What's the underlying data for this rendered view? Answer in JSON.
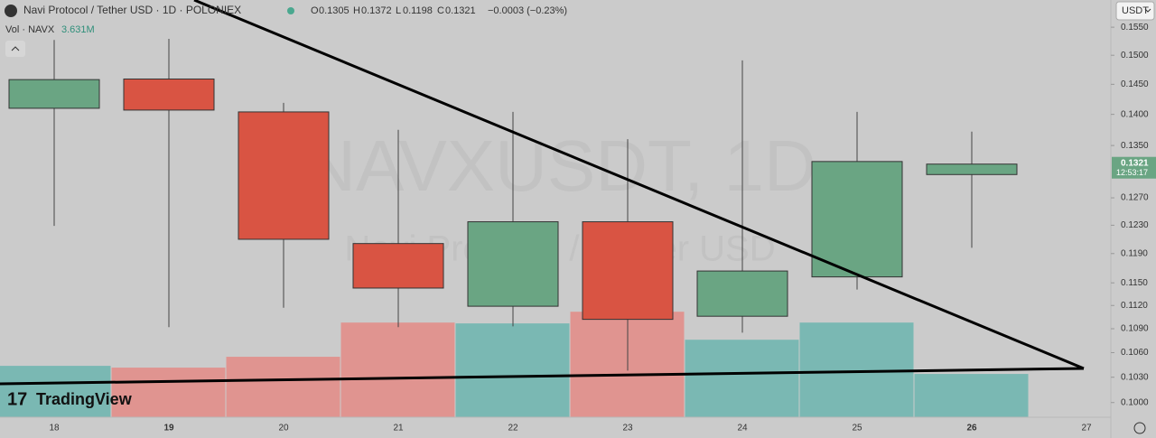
{
  "header": {
    "symbol": "Navi Protocol / Tether USD · 1D · POLONIEX",
    "open_key": "O",
    "high_key": "H",
    "low_key": "L",
    "close_key": "C",
    "change": "−0.0003 (−0.23%)",
    "volume_title": "Vol · NAVX",
    "currency": "USDT",
    "countdown": "12:53:17",
    "watermark_symbol": "NAVXUSDT, 1D",
    "watermark_name": "Navi Protocol / Tether USD",
    "brand": "TradingView"
  },
  "chart_data": {
    "type": "candlestick",
    "categories": [
      "18",
      "19",
      "20",
      "21",
      "22",
      "23",
      "24",
      "25",
      "26",
      "27"
    ],
    "open": [
      0.141,
      0.1459,
      0.1404,
      0.1204,
      0.1119,
      0.1235,
      0.1106,
      0.1158,
      0.1305,
      null
    ],
    "high": [
      0.1527,
      0.1529,
      0.1419,
      0.1375,
      0.1404,
      0.136,
      0.1491,
      0.1404,
      0.1372,
      null
    ],
    "low": [
      0.1229,
      0.1092,
      0.1117,
      0.1092,
      0.1093,
      0.1038,
      0.1085,
      0.1141,
      0.1198,
      null
    ],
    "close": [
      0.1458,
      0.1407,
      0.121,
      0.1143,
      0.1235,
      0.1102,
      0.1166,
      0.1325,
      0.1321,
      null
    ],
    "up_color": "#6aa583",
    "down_color": "#d95443",
    "ylim": [
      0.0983,
      0.16
    ],
    "log_scale": true,
    "yticks": [
      {
        "value": 0.155,
        "label": "0.1550"
      },
      {
        "value": 0.15,
        "label": "0.1500"
      },
      {
        "value": 0.145,
        "label": "0.1450"
      },
      {
        "value": 0.14,
        "label": "0.1400"
      },
      {
        "value": 0.135,
        "label": "0.1350"
      },
      {
        "value": 0.127,
        "label": "0.1270"
      },
      {
        "value": 0.123,
        "label": "0.1230"
      },
      {
        "value": 0.119,
        "label": "0.1190"
      },
      {
        "value": 0.115,
        "label": "0.1150"
      },
      {
        "value": 0.112,
        "label": "0.1120"
      },
      {
        "value": 0.109,
        "label": "0.1090"
      },
      {
        "value": 0.106,
        "label": "0.1060"
      },
      {
        "value": 0.103,
        "label": "0.1030"
      },
      {
        "value": 0.1,
        "label": "0.1000"
      }
    ],
    "bold_categories": [
      "19",
      "26"
    ],
    "volume": {
      "values": [
        4.31,
        4.16,
        5.07,
        7.94,
        7.87,
        8.85,
        6.5,
        7.94,
        3.631,
        null
      ],
      "value_labels": [
        null,
        null,
        null,
        null,
        null,
        null,
        null,
        null,
        "3.631M",
        null
      ],
      "ylim": [
        0,
        35
      ],
      "up_color": "#7ab8b3",
      "down_color": "#e09490"
    }
  }
}
